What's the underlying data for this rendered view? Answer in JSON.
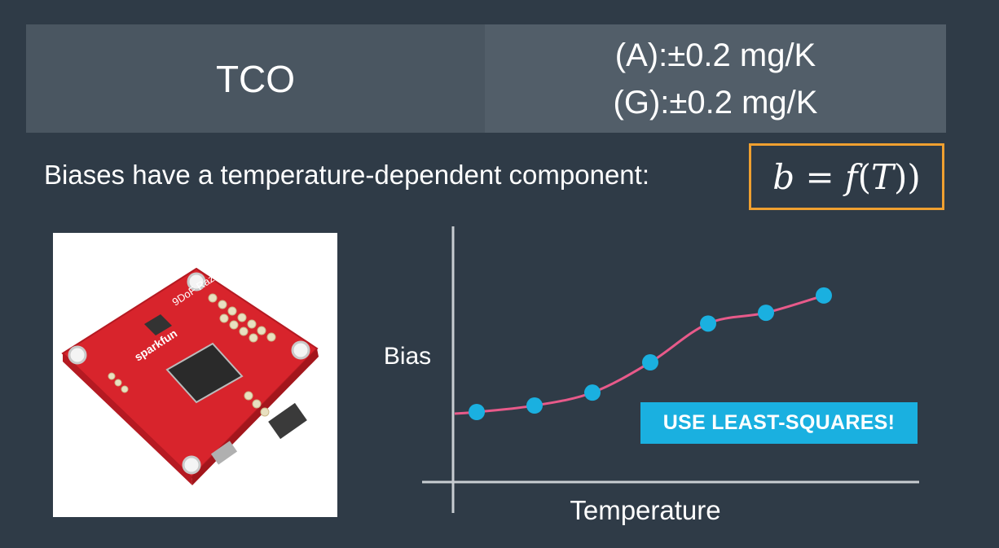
{
  "spec_table": {
    "label": "TCO",
    "values": [
      "(A):±0.2 mg/K",
      "(G):±0.2 mg/K"
    ]
  },
  "statement": "Biases have a temperature-dependent component:",
  "formula": {
    "b": "b",
    "eq": " = ",
    "f": "f",
    "open": "(",
    "T": "T",
    "close": "))"
  },
  "photo": {
    "icon": "sparkfun-imu-board-icon",
    "board_text": [
      "9DoF Razor IMU",
      "sparkfun"
    ]
  },
  "chart_data": {
    "type": "line",
    "xlabel": "Temperature",
    "ylabel": "Bias",
    "x": [
      1,
      2,
      3,
      4,
      5,
      6,
      7
    ],
    "y": [
      1.0,
      1.3,
      1.9,
      3.3,
      5.1,
      5.6,
      6.4
    ],
    "points_marked": true,
    "line_color": "#e85a8a",
    "point_color": "#1ab0e0",
    "axis_color": "#c8cdd2",
    "annotation": "USE LEAST-SQUARES!"
  },
  "colors": {
    "background": "#2f3b47",
    "accent_box": "#f0a030",
    "board_red": "#d8242c"
  }
}
